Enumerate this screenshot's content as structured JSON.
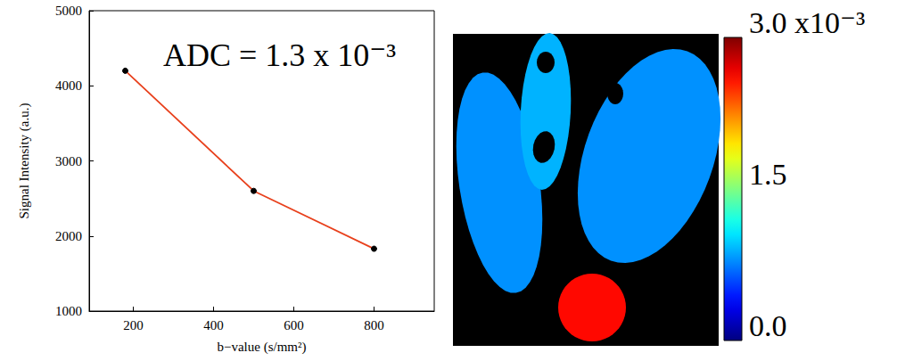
{
  "chart_data": [
    {
      "type": "line",
      "xlabel": "b−value (s/mm²)",
      "ylabel": "Signal Intensity (a.u.)",
      "annotation": "ADC = 1.3 x 10⁻³",
      "x": [
        180,
        500,
        800
      ],
      "values": [
        4200,
        2600,
        1830
      ],
      "color": "#e8401c",
      "marker": "circle",
      "xlim": [
        90,
        950
      ],
      "xticks": [
        200,
        400,
        600,
        800
      ],
      "ylim": [
        1000,
        5000
      ],
      "yticks": [
        1000,
        2000,
        3000,
        4000,
        5000
      ],
      "grid": false
    },
    {
      "type": "image",
      "values": [
        0.8,
        0.9,
        0.8,
        2.6
      ],
      "colorbar": {
        "range": [
          0,
          3.0
        ],
        "ticks": [
          {
            "value": 0,
            "label": "0.0"
          },
          {
            "value": 1.5,
            "label": "1.5"
          },
          {
            "value": 3,
            "label": "3.0 x10⁻³"
          }
        ]
      }
    }
  ]
}
